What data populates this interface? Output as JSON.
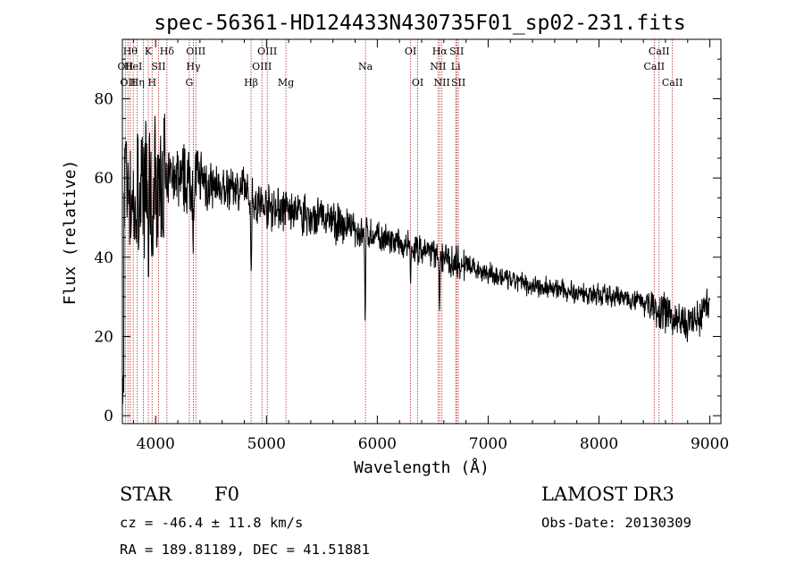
{
  "chart_data": {
    "type": "line",
    "title": "spec-56361-HD124433N430735F01_sp02-231.fits",
    "xlabel": "Wavelength (Å)",
    "ylabel": "Flux (relative)",
    "xlim": [
      3700,
      9100
    ],
    "ylim": [
      -2,
      95
    ],
    "xticks": [
      {
        "v": 4000,
        "label": "4000"
      },
      {
        "v": 5000,
        "label": "5000"
      },
      {
        "v": 6000,
        "label": "6000"
      },
      {
        "v": 7000,
        "label": "7000"
      },
      {
        "v": 8000,
        "label": "8000"
      },
      {
        "v": 9000,
        "label": "9000"
      }
    ],
    "yticks": [
      {
        "v": 0,
        "label": "0"
      },
      {
        "v": 20,
        "label": "20"
      },
      {
        "v": 40,
        "label": "40"
      },
      {
        "v": 60,
        "label": "60"
      },
      {
        "v": 80,
        "label": "80"
      }
    ],
    "spectrum_anchors": [
      [
        3700,
        5
      ],
      [
        3720,
        62
      ],
      [
        3760,
        58
      ],
      [
        3800,
        50
      ],
      [
        3850,
        56
      ],
      [
        3900,
        58
      ],
      [
        3950,
        55
      ],
      [
        4000,
        59
      ],
      [
        4100,
        60
      ],
      [
        4200,
        61
      ],
      [
        4300,
        59
      ],
      [
        4400,
        60
      ],
      [
        4500,
        58
      ],
      [
        4600,
        57
      ],
      [
        4700,
        58
      ],
      [
        4800,
        57
      ],
      [
        4900,
        54
      ],
      [
        5000,
        53
      ],
      [
        5100,
        52
      ],
      [
        5200,
        52
      ],
      [
        5300,
        51
      ],
      [
        5400,
        50
      ],
      [
        5500,
        50
      ],
      [
        5600,
        49
      ],
      [
        5700,
        48
      ],
      [
        5800,
        47
      ],
      [
        5900,
        46
      ],
      [
        6000,
        45
      ],
      [
        6100,
        44
      ],
      [
        6200,
        43
      ],
      [
        6300,
        42
      ],
      [
        6400,
        42
      ],
      [
        6500,
        41
      ],
      [
        6600,
        40
      ],
      [
        6700,
        39
      ],
      [
        6800,
        38
      ],
      [
        6900,
        37
      ],
      [
        7000,
        36
      ],
      [
        7200,
        34
      ],
      [
        7400,
        33
      ],
      [
        7600,
        32
      ],
      [
        7800,
        31
      ],
      [
        8000,
        30.5
      ],
      [
        8200,
        30
      ],
      [
        8400,
        29
      ],
      [
        8600,
        26
      ],
      [
        8700,
        24
      ],
      [
        8800,
        23
      ],
      [
        8900,
        24
      ],
      [
        9000,
        30
      ]
    ],
    "absorption_features": [
      {
        "w": 4861,
        "depth": 18,
        "width": 6
      },
      {
        "w": 4340,
        "depth": 16,
        "width": 6
      },
      {
        "w": 4102,
        "depth": 12,
        "width": 6
      },
      {
        "w": 5890,
        "depth": 22,
        "width": 5
      },
      {
        "w": 6563,
        "depth": 13,
        "width": 6
      },
      {
        "w": 6300,
        "depth": 8,
        "width": 5
      },
      {
        "w": 3934,
        "depth": 20,
        "width": 5
      },
      {
        "w": 3968,
        "depth": 18,
        "width": 5
      }
    ],
    "lines": [
      {
        "w": 3727,
        "label": "OII",
        "row": 1
      },
      {
        "w": 3750,
        "label": "OII",
        "row": 2
      },
      {
        "w": 3771,
        "label": "Hθ",
        "row": 0
      },
      {
        "w": 3798,
        "label": "HeI",
        "row": 1
      },
      {
        "w": 3835,
        "label": "Hη",
        "row": 2
      },
      {
        "w": 3889,
        "label": "",
        "row": 0
      },
      {
        "w": 3934,
        "label": "K",
        "row": 0
      },
      {
        "w": 3968,
        "label": "H",
        "row": 2
      },
      {
        "w": 4026,
        "label": "SII",
        "row": 1
      },
      {
        "w": 4102,
        "label": "Hδ",
        "row": 0
      },
      {
        "w": 4304,
        "label": "G",
        "row": 2
      },
      {
        "w": 4340,
        "label": "Hγ",
        "row": 1
      },
      {
        "w": 4363,
        "label": "OIII",
        "row": 0
      },
      {
        "w": 4861,
        "label": "Hβ",
        "row": 2
      },
      {
        "w": 4959,
        "label": "OIII",
        "row": 1
      },
      {
        "w": 5007,
        "label": "OIII",
        "row": 0
      },
      {
        "w": 5175,
        "label": "Mg",
        "row": 2
      },
      {
        "w": 5893,
        "label": "Na",
        "row": 1
      },
      {
        "w": 6300,
        "label": "OI",
        "row": 0
      },
      {
        "w": 6364,
        "label": "OI",
        "row": 2
      },
      {
        "w": 6548,
        "label": "NII",
        "row": 1
      },
      {
        "w": 6563,
        "label": "Hα",
        "row": 0
      },
      {
        "w": 6583,
        "label": "NII",
        "row": 2
      },
      {
        "w": 6708,
        "label": "Li",
        "row": 1
      },
      {
        "w": 6716,
        "label": "SII",
        "row": 0
      },
      {
        "w": 6731,
        "label": "SII",
        "row": 2
      },
      {
        "w": 8498,
        "label": "CaII",
        "row": 1
      },
      {
        "w": 8542,
        "label": "CaII",
        "row": 0
      },
      {
        "w": 8662,
        "label": "CaII",
        "row": 2
      }
    ],
    "line_color": "#b22222"
  },
  "info": {
    "object_class": "STAR",
    "subclass": "F0",
    "survey": "LAMOST DR3",
    "cz": "cz = -46.4 ± 11.8 km/s",
    "obs_date": "Obs-Date: 20130309",
    "coords": "RA = 189.81189, DEC =  41.51881"
  }
}
